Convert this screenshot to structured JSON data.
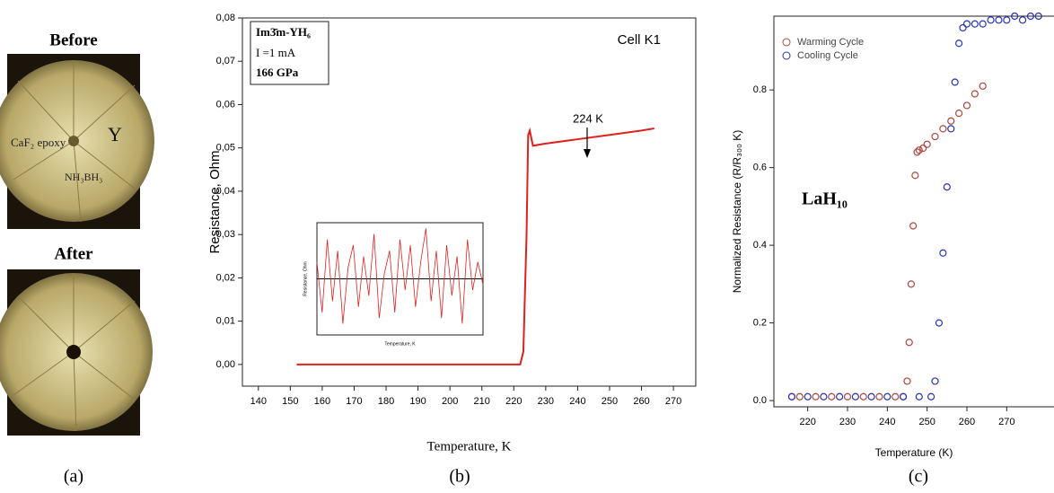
{
  "photos": {
    "before": "Before",
    "after": "After",
    "material": "CaF₂ epoxy",
    "sample": "Y",
    "source": "NH₃BH₃"
  },
  "panel_labels": [
    "(a)",
    "(b)",
    "(c)"
  ],
  "chart_data": [
    {
      "type": "line",
      "xlabel": "Temperature, K",
      "ylabel": "Resistance, Ohm",
      "annotations": [
        "Im3̄m-YH₆",
        "I =1 mA",
        "166 GPa",
        "Cell K1",
        "224 K"
      ],
      "xlim": [
        135,
        277
      ],
      "ylim": [
        -0.005,
        0.08
      ],
      "xticks": [
        140,
        150,
        160,
        170,
        180,
        190,
        200,
        210,
        220,
        230,
        240,
        250,
        260,
        270
      ],
      "yticks": [
        {
          "value": 0,
          "label": "0,00"
        },
        {
          "value": 0.01,
          "label": "0,01"
        },
        {
          "value": 0.02,
          "label": "0,02"
        },
        {
          "value": 0.03,
          "label": "0,03"
        },
        {
          "value": 0.04,
          "label": "0,04"
        },
        {
          "value": 0.05,
          "label": "0,05"
        },
        {
          "value": 0.06,
          "label": "0,06"
        },
        {
          "value": 0.07,
          "label": "0,07"
        },
        {
          "value": 0.08,
          "label": "0,08"
        }
      ],
      "series": [
        {
          "color": "#e0201c",
          "x": [
            152,
            222,
            223,
            224,
            224.5,
            225,
            226,
            230,
            240,
            250,
            260,
            264
          ],
          "values": [
            0,
            0,
            0.003,
            0.03,
            0.053,
            0.054,
            0.0505,
            0.051,
            0.052,
            0.053,
            0.054,
            0.0545
          ]
        }
      ]
    },
    {
      "type": "line",
      "xlabel": "Temperature, K",
      "ylabel": "Resistance, Ohm",
      "xlim": [
        152,
        216
      ],
      "ylim": [
        -1,
        1
      ],
      "series": [
        {
          "color": "#e0201c",
          "x": [
            152,
            154,
            156,
            158,
            160,
            162,
            164,
            166,
            168,
            170,
            172,
            174,
            176,
            178,
            180,
            182,
            184,
            186,
            188,
            190,
            192,
            194,
            196,
            198,
            200,
            202,
            204,
            206,
            208,
            210,
            212,
            214,
            216
          ],
          "values": [
            0.3,
            -0.6,
            0.7,
            -0.4,
            0.5,
            -0.8,
            0.2,
            0.6,
            -0.5,
            0.4,
            -0.3,
            0.8,
            -0.7,
            0.1,
            0.5,
            -0.6,
            0.7,
            -0.2,
            0.6,
            -0.5,
            0.3,
            0.9,
            -0.4,
            0.5,
            -0.7,
            0.6,
            -0.3,
            0.4,
            -0.8,
            0.7,
            -0.2,
            0.3,
            -0.1
          ]
        }
      ]
    },
    {
      "type": "scatter",
      "xlabel": "Temperature (K)",
      "ylabel": "Normalized Resistance (R/R₃₀₀ K)",
      "annotations": [
        "LaH₁₀"
      ],
      "xlim": [
        211.5,
        285.5
      ],
      "ylim": [
        -0.016,
        0.99
      ],
      "xticks": [
        220,
        230,
        240,
        250,
        260,
        270
      ],
      "yticks": [
        {
          "value": 0,
          "label": "0.0"
        },
        {
          "value": 0.2,
          "label": "0.2"
        },
        {
          "value": 0.4,
          "label": "0.4"
        },
        {
          "value": 0.6,
          "label": "0.6"
        },
        {
          "value": 0.8,
          "label": "0.8"
        }
      ],
      "legend": "upper left",
      "series": [
        {
          "name": "Warming Cycle",
          "color": "#b0463f",
          "x": [
            216,
            218,
            222,
            226,
            230,
            234,
            238,
            242,
            244,
            245,
            245.5,
            246,
            246.5,
            247,
            247.5,
            248,
            249,
            250,
            252,
            254,
            256,
            258,
            260,
            262,
            264
          ],
          "values": [
            0.01,
            0.01,
            0.01,
            0.01,
            0.01,
            0.01,
            0.01,
            0.01,
            0.01,
            0.05,
            0.15,
            0.3,
            0.45,
            0.58,
            0.64,
            0.645,
            0.65,
            0.66,
            0.68,
            0.7,
            0.72,
            0.74,
            0.76,
            0.79,
            0.81
          ]
        },
        {
          "name": "Cooling Cycle",
          "color": "#2633b8",
          "x": [
            216,
            220,
            224,
            228,
            232,
            236,
            240,
            244,
            248,
            251,
            252,
            253,
            254,
            255,
            256,
            257,
            258,
            259,
            260,
            262,
            264,
            266,
            268,
            270,
            272,
            274,
            276,
            278
          ],
          "values": [
            0.01,
            0.01,
            0.01,
            0.01,
            0.01,
            0.01,
            0.01,
            0.01,
            0.01,
            0.01,
            0.05,
            0.2,
            0.38,
            0.55,
            0.7,
            0.82,
            0.92,
            0.96,
            0.97,
            0.97,
            0.97,
            0.98,
            0.98,
            0.98,
            0.99,
            0.98,
            0.99,
            0.99
          ]
        }
      ]
    }
  ]
}
